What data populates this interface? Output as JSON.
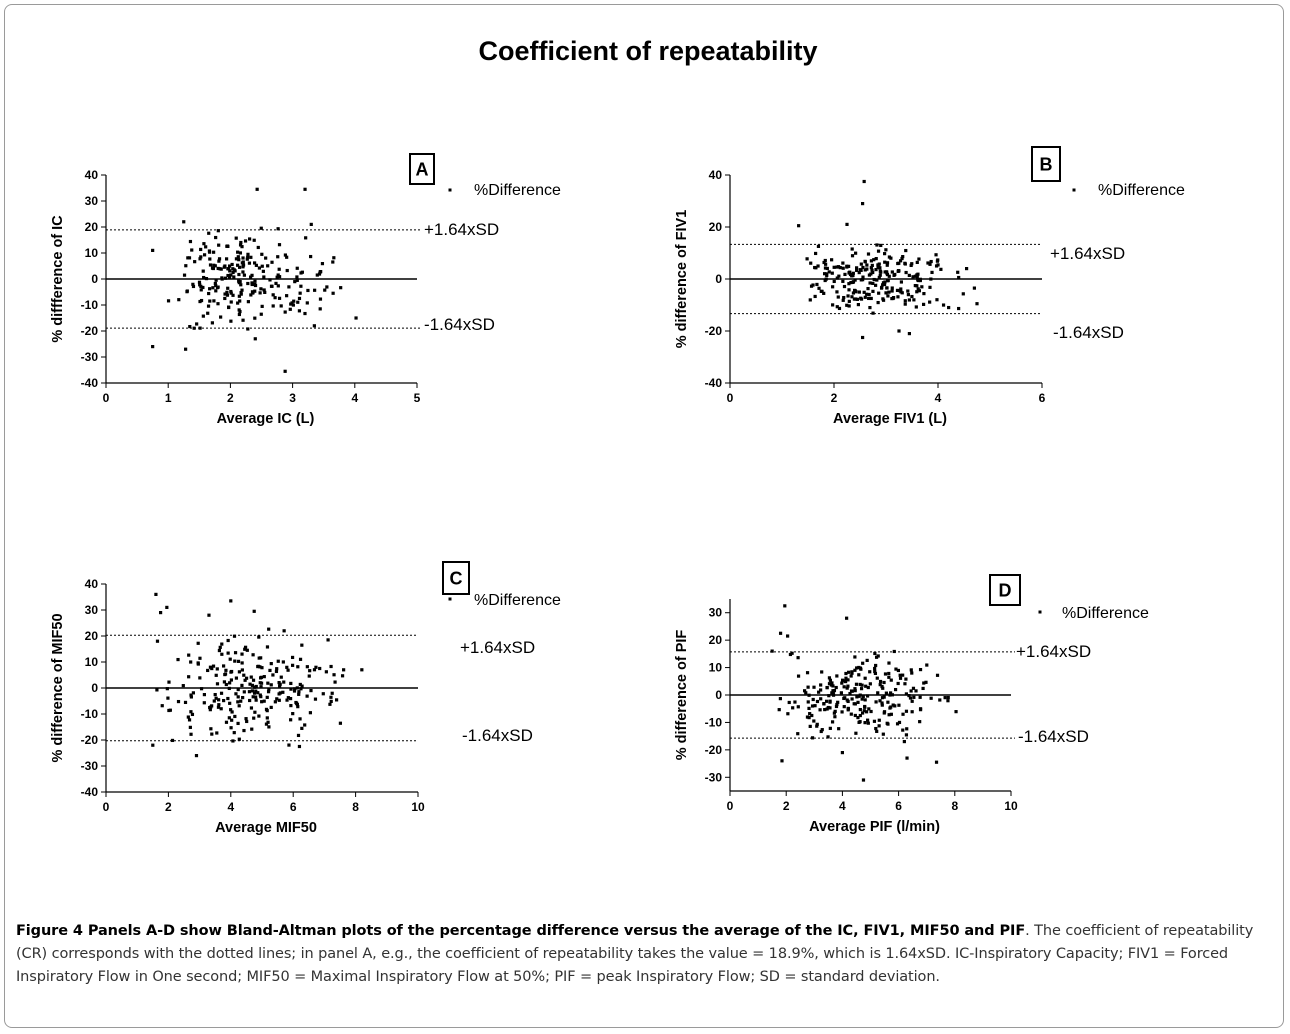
{
  "figure_title": "Coefficient of repeatability",
  "caption": {
    "bold": "Figure 4 Panels A-D show Bland-Altman plots of the percentage difference versus the average of the IC, FIV1, MIF50 and PIF",
    "text": ". The coefficient of repeatability (CR) corresponds with the dotted lines; in panel A, e.g., the coefficient of repeatability takes the value = 18.9%, which is 1.64xSD. IC-Inspiratory Capacity; FIV1 = Forced Inspiratory Flow in One second; MIF50 = Maximal Inspiratory Flow at 50%; PIF = peak Inspiratory Flow; SD = standard deviation."
  },
  "chart_data": [
    {
      "panel": "A",
      "type": "scatter",
      "xlabel": "Average IC (L)",
      "ylabel": "% diffference of IC",
      "xlim": [
        0,
        5
      ],
      "ylim": [
        -40,
        40
      ],
      "xticks": [
        0,
        1,
        2,
        3,
        4,
        5
      ],
      "yticks": [
        -40,
        -30,
        -20,
        -10,
        0,
        10,
        20,
        30,
        40
      ],
      "legend": "%Difference",
      "upper_label": "+1.64xSD",
      "lower_label": "-1.64xSD",
      "upper": 18.9,
      "lower": -18.9,
      "mean": 0,
      "outliers": [
        [
          0.75,
          -26
        ],
        [
          0.75,
          11
        ],
        [
          1.28,
          -27
        ],
        [
          2.43,
          34.5
        ],
        [
          2.88,
          -35.5
        ],
        [
          3.2,
          34.5
        ],
        [
          3.3,
          21
        ],
        [
          3.35,
          -18
        ],
        [
          4.02,
          -15
        ],
        [
          2.4,
          -23
        ],
        [
          1.25,
          22
        ]
      ],
      "n_points": 235,
      "seed": 11,
      "xrange": [
        0.9,
        3.8
      ],
      "xpeak": 1.9,
      "spread": 8.5
    },
    {
      "panel": "B",
      "type": "scatter",
      "xlabel": "Average FIV1 (L)",
      "ylabel": "% difference of FIV1",
      "xlim": [
        0,
        6
      ],
      "ylim": [
        -40,
        40
      ],
      "xticks": [
        0,
        2,
        4,
        6
      ],
      "yticks": [
        -40,
        -20,
        0,
        20,
        40
      ],
      "legend": "%Difference",
      "upper_label": "+1.64xSD",
      "lower_label": "-1.64xSD",
      "upper": 13.3,
      "lower": -13.3,
      "mean": 0,
      "outliers": [
        [
          2.58,
          37.5
        ],
        [
          2.55,
          29
        ],
        [
          2.25,
          21
        ],
        [
          1.32,
          20.5
        ],
        [
          2.55,
          -22.5
        ],
        [
          3.45,
          -21
        ],
        [
          3.25,
          -20
        ],
        [
          4.75,
          -9.5
        ],
        [
          4.7,
          -3.5
        ],
        [
          4.55,
          4
        ]
      ],
      "n_points": 245,
      "seed": 23,
      "xrange": [
        1.2,
        4.6
      ],
      "xpeak": 2.7,
      "spread": 6.2
    },
    {
      "panel": "C",
      "type": "scatter",
      "xlabel": "Average MIF50",
      "ylabel": "% difference of MIF50",
      "xlim": [
        0,
        10
      ],
      "ylim": [
        -40,
        40
      ],
      "xticks": [
        0,
        2,
        4,
        6,
        8,
        10
      ],
      "yticks": [
        -40,
        -30,
        -20,
        -10,
        0,
        10,
        20,
        30,
        40
      ],
      "legend": "%Difference",
      "upper_label": "+1.64xSD",
      "lower_label": "-1.64xSD",
      "upper": 20.3,
      "lower": -20.3,
      "mean": 0,
      "outliers": [
        [
          1.6,
          36
        ],
        [
          1.95,
          31
        ],
        [
          1.75,
          29
        ],
        [
          4.0,
          33.5
        ],
        [
          4.75,
          29.5
        ],
        [
          3.3,
          28
        ],
        [
          2.9,
          -26
        ],
        [
          1.5,
          -22
        ],
        [
          6.2,
          -22.5
        ],
        [
          1.65,
          18
        ],
        [
          8.2,
          7
        ]
      ],
      "n_points": 240,
      "seed": 37,
      "xrange": [
        1.4,
        8.0
      ],
      "xpeak": 4.2,
      "spread": 9
    },
    {
      "panel": "D",
      "type": "scatter",
      "xlabel": "Average PIF (l/min)",
      "ylabel": "% difference of PIF",
      "xlim": [
        0,
        10
      ],
      "ylim": [
        -35,
        35
      ],
      "xticks": [
        0,
        2,
        4,
        6,
        8,
        10
      ],
      "yticks": [
        -30,
        -20,
        -10,
        0,
        10,
        20,
        30
      ],
      "legend": "%Difference",
      "upper_label": "+1.64xSD",
      "lower_label": "-1.64xSD",
      "upper": 15.7,
      "lower": -15.7,
      "mean": 0,
      "outliers": [
        [
          1.95,
          32.5
        ],
        [
          4.15,
          28
        ],
        [
          1.8,
          22.5
        ],
        [
          2.05,
          21.5
        ],
        [
          1.85,
          -24
        ],
        [
          4.75,
          -31
        ],
        [
          7.35,
          -24.5
        ],
        [
          6.3,
          -23
        ],
        [
          4.0,
          -21
        ],
        [
          1.5,
          16
        ]
      ],
      "n_points": 245,
      "seed": 53,
      "xrange": [
        1.4,
        8.3
      ],
      "xpeak": 4.5,
      "spread": 7.5
    }
  ]
}
